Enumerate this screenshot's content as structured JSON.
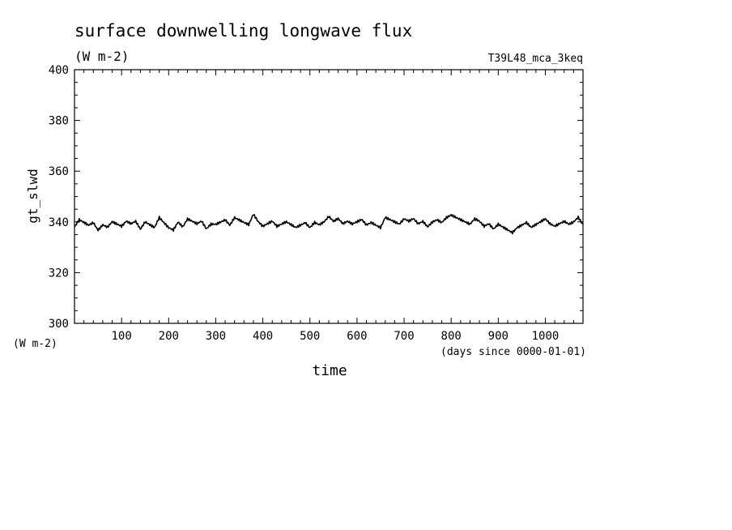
{
  "chart_data": {
    "type": "line",
    "title": "surface downwelling longwave flux",
    "subtitle": "(W m-2)",
    "run_label": "T39L48_mca_3keq",
    "ylabel": "gt_slwd",
    "yunit_label": "(W m-2)",
    "xlabel": "time",
    "xunit_label": "(days since 0000-01-01)",
    "xlim": [
      0,
      1080
    ],
    "ylim": [
      300,
      400
    ],
    "x_ticks": [
      100,
      200,
      300,
      400,
      500,
      600,
      700,
      800,
      900,
      1000
    ],
    "y_ticks": [
      300,
      320,
      340,
      360,
      380,
      400
    ],
    "grid": false,
    "line_color": "#000000",
    "series": [
      {
        "x": [
          0,
          10,
          20,
          30,
          40,
          50,
          60,
          70,
          80,
          90,
          100,
          110,
          120,
          130,
          140,
          150,
          160,
          170,
          180,
          190,
          200,
          210,
          220,
          230,
          240,
          250,
          260,
          270,
          280,
          290,
          300,
          310,
          320,
          330,
          340,
          350,
          360,
          370,
          380,
          390,
          400,
          410,
          420,
          430,
          440,
          450,
          460,
          470,
          480,
          490,
          500,
          510,
          520,
          530,
          540,
          550,
          560,
          570,
          580,
          590,
          600,
          610,
          620,
          630,
          640,
          650,
          660,
          670,
          680,
          690,
          700,
          710,
          720,
          730,
          740,
          750,
          760,
          770,
          780,
          790,
          800,
          810,
          820,
          830,
          840,
          850,
          860,
          870,
          880,
          890,
          900,
          910,
          920,
          930,
          940,
          950,
          960,
          970,
          980,
          990,
          1000,
          1010,
          1020,
          1030,
          1040,
          1050,
          1060,
          1070,
          1080
        ],
        "values": [
          338,
          341,
          340,
          339,
          340,
          337,
          339,
          338,
          340,
          339,
          338,
          340,
          339,
          340,
          337,
          340,
          339,
          338,
          342,
          340,
          338,
          337,
          340,
          338,
          341,
          340,
          339,
          340,
          337,
          339,
          339,
          340,
          341,
          339,
          342,
          341,
          340,
          339,
          343,
          340,
          338,
          339,
          340,
          338,
          339,
          340,
          339,
          338,
          339,
          340,
          338,
          340,
          339,
          340,
          342,
          340,
          341,
          339,
          340,
          339,
          340,
          341,
          339,
          340,
          339,
          338,
          342,
          341,
          340,
          339,
          341,
          340,
          341,
          339,
          340,
          338,
          340,
          341,
          340,
          342,
          343,
          342,
          341,
          340,
          339,
          341,
          340,
          338,
          339,
          337,
          339,
          338,
          337,
          336,
          338,
          339,
          340,
          338,
          339,
          340,
          341,
          339,
          338,
          339,
          340,
          339,
          340,
          342,
          339
        ]
      }
    ]
  }
}
